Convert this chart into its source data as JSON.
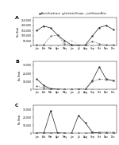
{
  "months": [
    "Jan",
    "Feb",
    "Mar",
    "Apr",
    "May",
    "Jun",
    "Jul",
    "Aug",
    "Sep",
    "Oct",
    "Nov",
    "Dec"
  ],
  "panel_A": {
    "title": "A",
    "ylim": [
      0,
      280000
    ],
    "yticks": [
      0,
      50000,
      100000,
      150000,
      200000,
      250000
    ],
    "ytick_labels": [
      "0",
      "50,000",
      "100,000",
      "150,000",
      "200,000",
      "250,000"
    ],
    "siberia": [
      150000,
      195000,
      175000,
      105000,
      50000,
      8000,
      5000,
      8000,
      95000,
      180000,
      200000,
      160000
    ],
    "continental": [
      8000,
      8000,
      95000,
      105000,
      18000,
      5000,
      5000,
      5000,
      45000,
      18000,
      8000,
      8000
    ],
    "subsaharan": [
      1000,
      1000,
      1000,
      1000,
      32000,
      52000,
      12000,
      1000,
      1000,
      1000,
      1000,
      1000
    ]
  },
  "panel_B": {
    "title": "B",
    "ylim": [
      0,
      35000
    ],
    "yticks": [
      0,
      10000,
      20000,
      30000
    ],
    "ytick_labels": [
      "0",
      "10,000",
      "20,000",
      "30,000"
    ],
    "siberia": [
      13000,
      5000,
      1000,
      300,
      100,
      50,
      300,
      200,
      11000,
      28000,
      13000,
      11000
    ],
    "continental": [
      4000,
      2500,
      800,
      300,
      100,
      50,
      100,
      200,
      10000,
      13000,
      12000,
      11000
    ],
    "subsaharan": [
      100,
      100,
      50,
      50,
      50,
      50,
      50,
      50,
      50,
      50,
      50,
      100
    ]
  },
  "panel_C": {
    "title": "C",
    "ylim": [
      0,
      35000
    ],
    "yticks": [
      0,
      10000,
      20000,
      30000
    ],
    "ytick_labels": [
      "0",
      "10,000",
      "20,000",
      "30,000"
    ],
    "siberia": [
      200,
      200,
      28000,
      500,
      100,
      50,
      22000,
      13000,
      1500,
      300,
      100,
      50
    ],
    "continental": [
      800,
      800,
      800,
      800,
      300,
      50,
      50,
      50,
      800,
      1500,
      1500,
      1500
    ],
    "subsaharan": [
      50,
      50,
      50,
      50,
      50,
      50,
      50,
      50,
      50,
      50,
      50,
      50
    ]
  },
  "colors": {
    "siberia": "#222222",
    "continental": "#666666",
    "subsaharan": "#bbbbbb"
  },
  "legend_labels": [
    "Siberia/Scandinavia",
    "Continental Europe",
    "sub-Saharan Africa"
  ],
  "figsize": [
    1.5,
    1.82
  ],
  "dpi": 100
}
